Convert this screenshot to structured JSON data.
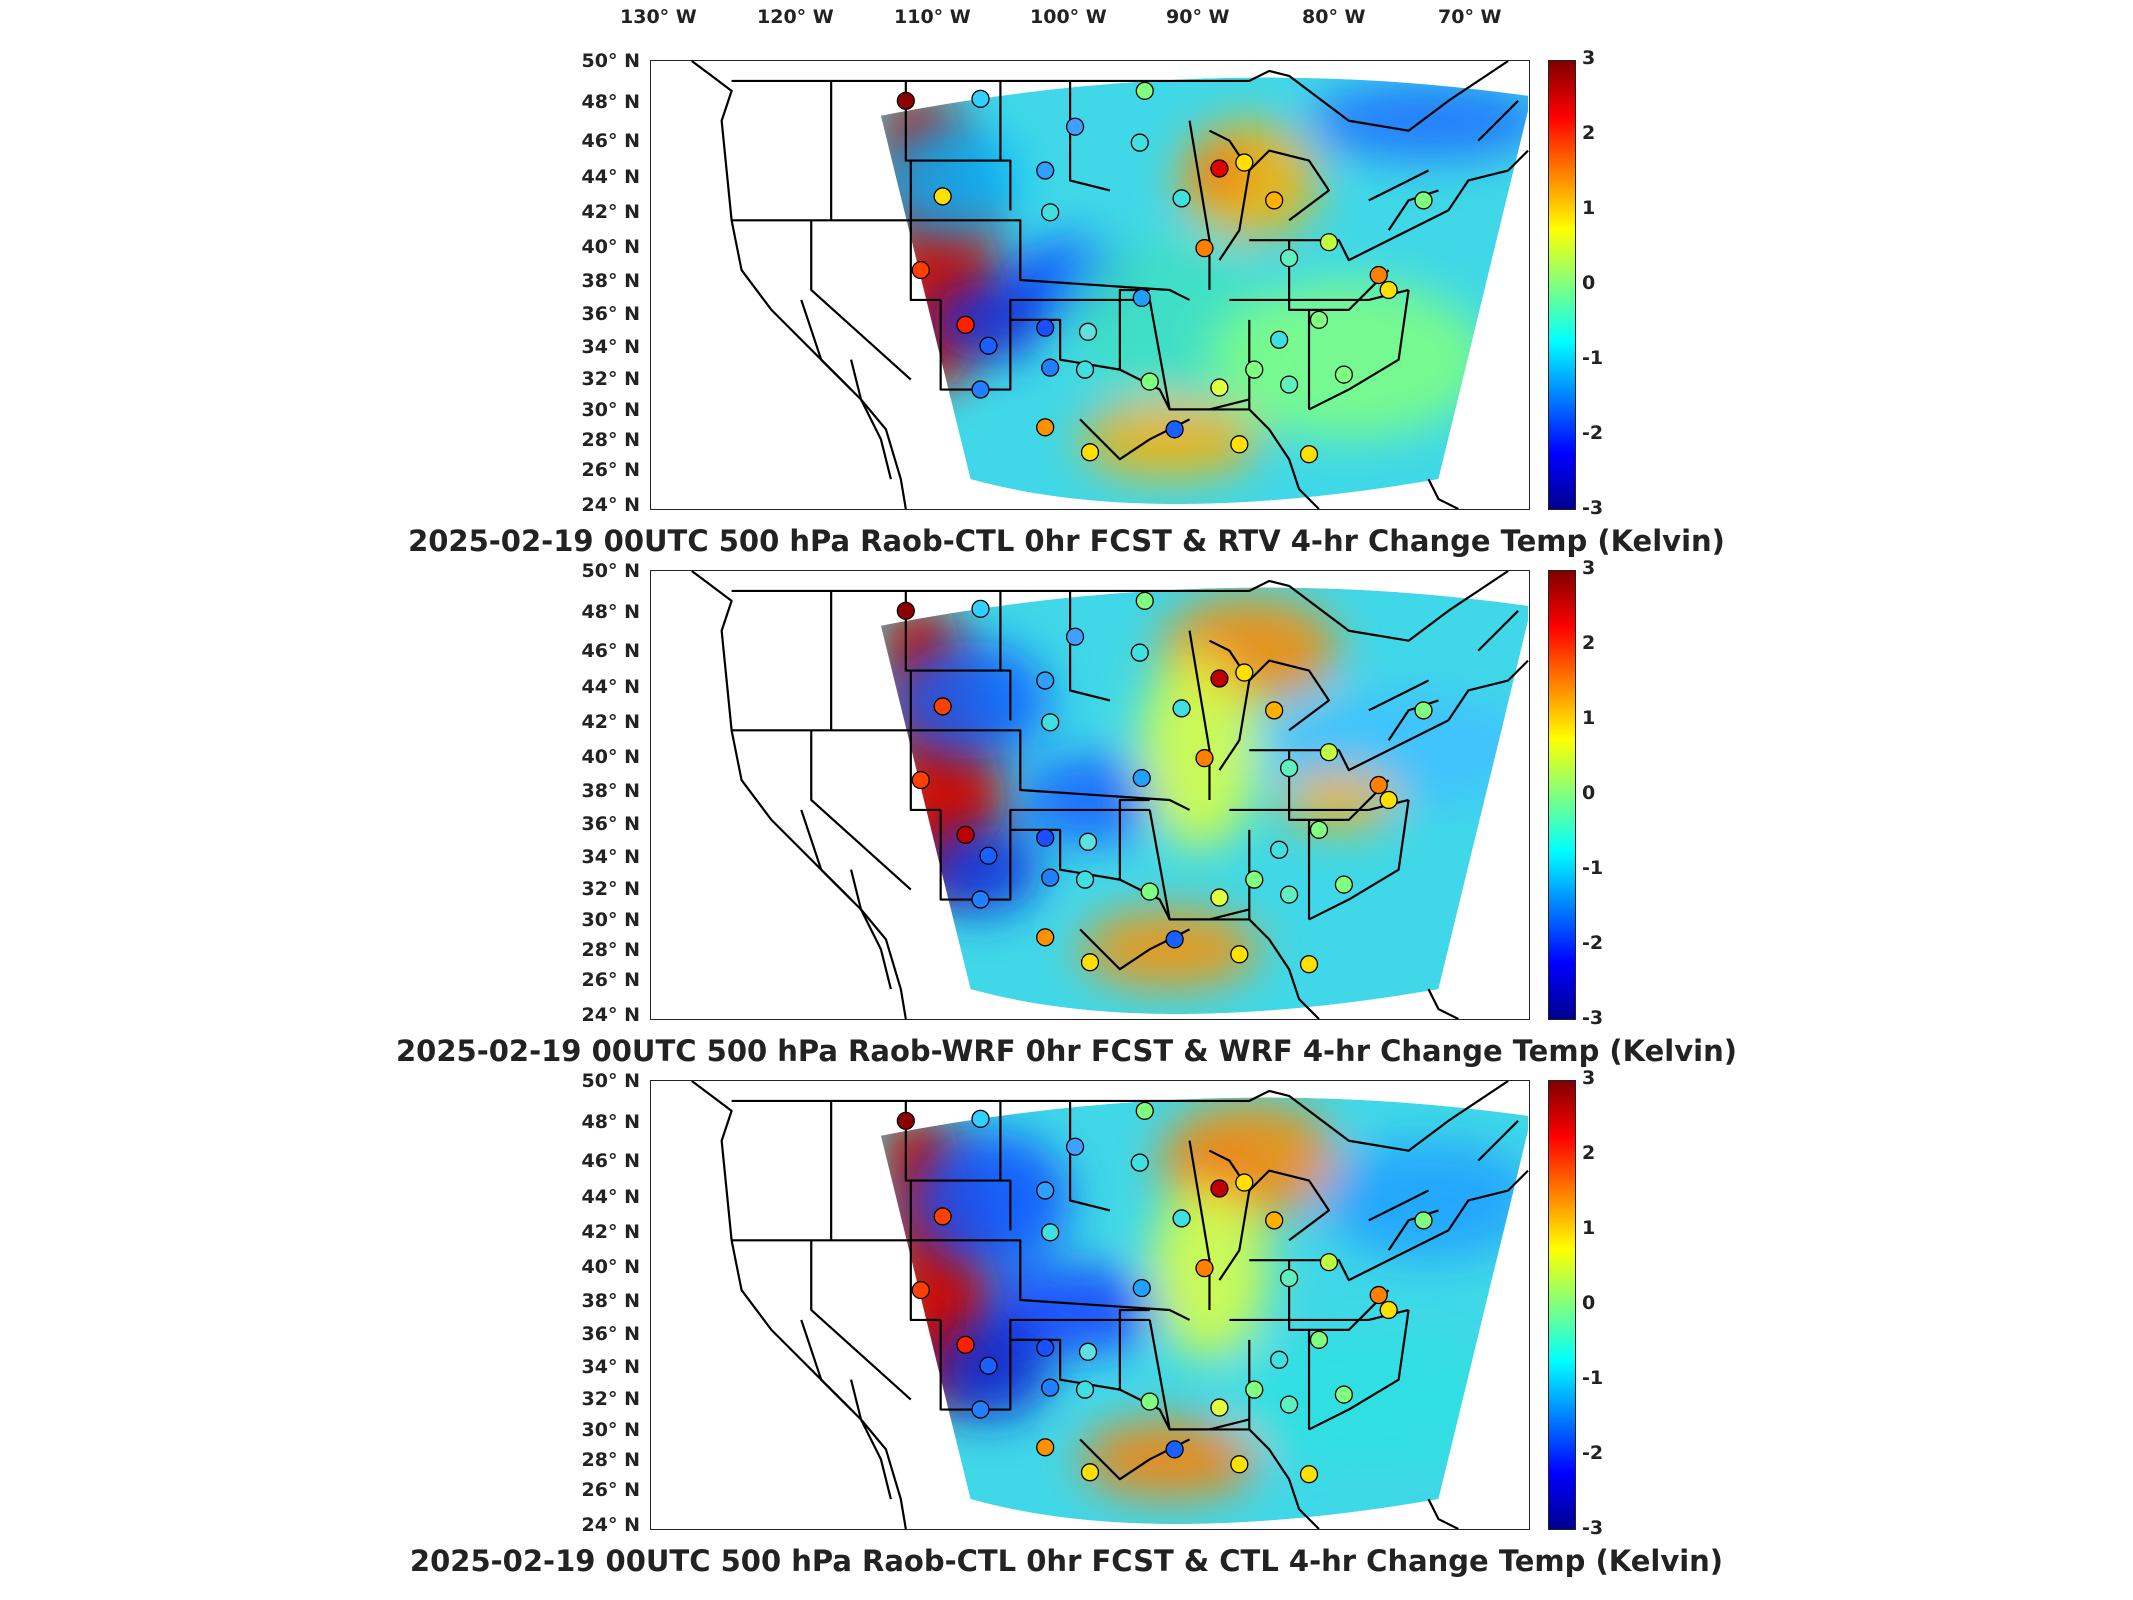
{
  "lon_labels": [
    "130° W",
    "120° W",
    "110° W",
    "100° W",
    "90° W",
    "80° W",
    "70° W"
  ],
  "lat_labels": [
    "50° N",
    "48° N",
    "46° N",
    "44° N",
    "42° N",
    "40° N",
    "38° N",
    "36° N",
    "34° N",
    "32° N",
    "30° N",
    "28° N",
    "26° N",
    "24° N"
  ],
  "colorbar": {
    "ticks": [
      "3",
      "2",
      "1",
      "0",
      "-1",
      "-2",
      "-3"
    ],
    "min": -3,
    "max": 3,
    "colormap": "jet"
  },
  "panels": [
    {
      "title": "2025-02-19 00UTC 500 hPa Raob-CTL 0hr FCST & RTV 4-hr Change Temp (Kelvin)"
    },
    {
      "title": "2025-02-19 00UTC 500 hPa Raob-WRF 0hr FCST & WRF 4-hr Change Temp (Kelvin)"
    },
    {
      "title": "2025-02-19 00UTC 500 hPa Raob-CTL 0hr FCST & CTL 4-hr Change Temp (Kelvin)"
    }
  ]
}
